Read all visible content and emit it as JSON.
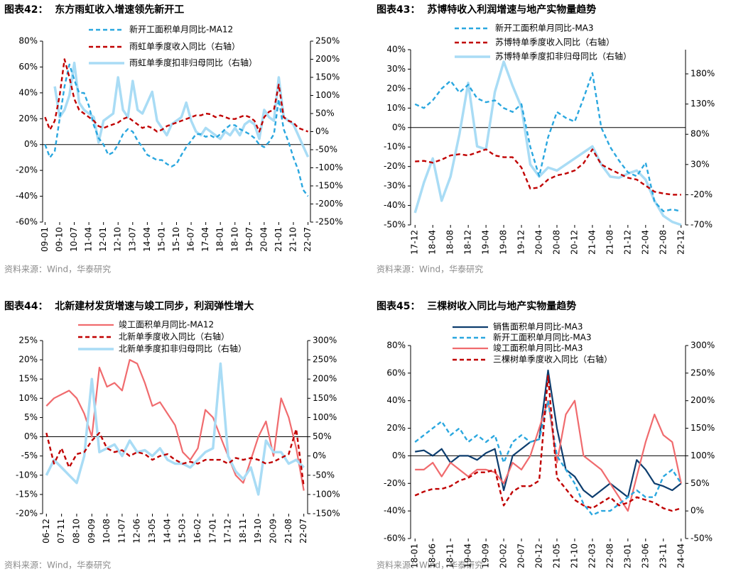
{
  "chart_data": [
    {
      "type": "line",
      "title": "图表42：  东方雨虹收入增速领先新开工",
      "source": "资料来源：Wind，华泰研究",
      "categories": [
        "09-01",
        null,
        null,
        "09-10",
        null,
        null,
        "10-07",
        null,
        null,
        "11-04",
        null,
        null,
        "12-01",
        null,
        null,
        "12-10",
        null,
        null,
        "13-07",
        null,
        null,
        "14-04",
        null,
        null,
        "15-01",
        null,
        null,
        "15-10",
        null,
        null,
        "16-07",
        null,
        null,
        "17-04",
        null,
        null,
        "18-01",
        null,
        null,
        "18-10",
        null,
        null,
        "19-07",
        null,
        null,
        "20-04",
        null,
        null,
        "21-01",
        null,
        null,
        "21-10",
        null,
        null,
        "22-07"
      ],
      "ylim": [
        -60,
        80
      ],
      "yticks": [
        {
          "value": -60,
          "label": "-60%"
        },
        {
          "value": -40,
          "label": "-40%"
        },
        {
          "value": -20,
          "label": "-20%"
        },
        {
          "value": 0,
          "label": "0%"
        },
        {
          "value": 20,
          "label": "20%"
        },
        {
          "value": 40,
          "label": "40%"
        },
        {
          "value": 60,
          "label": "60%"
        },
        {
          "value": 80,
          "label": "80%"
        }
      ],
      "y2lim": [
        -250,
        250
      ],
      "y2ticks": [
        {
          "value": -250,
          "label": "-250%"
        },
        {
          "value": -200,
          "label": "-200%"
        },
        {
          "value": -150,
          "label": "-150%"
        },
        {
          "value": -100,
          "label": "-100%"
        },
        {
          "value": -50,
          "label": "-50%"
        },
        {
          "value": 0,
          "label": "0%"
        },
        {
          "value": 50,
          "label": "50%"
        },
        {
          "value": 100,
          "label": "100%"
        },
        {
          "value": 150,
          "label": "150%"
        },
        {
          "value": 200,
          "label": "200%"
        },
        {
          "value": 250,
          "label": "250%"
        }
      ],
      "series": [
        {
          "name": "新开工面积单月同比-MA12",
          "color": "#2aa7df",
          "dash": true,
          "values": [
            0,
            -10,
            -5,
            20,
            45,
            62,
            50,
            40,
            40,
            30,
            15,
            5,
            0,
            -8,
            -6,
            0,
            8,
            12,
            10,
            3,
            -2,
            -8,
            -10,
            -12,
            -12,
            -15,
            -17,
            -15,
            -8,
            -2,
            3,
            8,
            8,
            6,
            7,
            5,
            8,
            12,
            15,
            15,
            12,
            10,
            8,
            5,
            0,
            -2,
            2,
            8,
            35,
            12,
            2,
            -10,
            -20,
            -35,
            -40
          ]
        },
        {
          "name": "雨虹单季度收入同比（右轴）",
          "color": "#c00000",
          "dash": true,
          "axis": "y2",
          "values": [
            40,
            5,
            30,
            100,
            200,
            150,
            90,
            60,
            50,
            40,
            30,
            15,
            10,
            15,
            20,
            25,
            35,
            40,
            30,
            20,
            10,
            15,
            10,
            0,
            5,
            15,
            20,
            25,
            30,
            35,
            40,
            45,
            45,
            50,
            48,
            40,
            45,
            40,
            35,
            35,
            40,
            45,
            40,
            30,
            0,
            40,
            55,
            60,
            130,
            40,
            30,
            25,
            10,
            5,
            0
          ]
        },
        {
          "name": "雨虹单季度扣非归母同比（右轴）",
          "color": "#a9dcf5",
          "axis": "y2",
          "values": [
            null,
            null,
            125,
            40,
            60,
            100,
            190,
            80,
            60,
            50,
            40,
            -30,
            30,
            40,
            50,
            150,
            60,
            40,
            140,
            60,
            50,
            80,
            110,
            30,
            10,
            -10,
            20,
            30,
            40,
            80,
            30,
            0,
            -10,
            10,
            0,
            -10,
            -20,
            0,
            -10,
            10,
            -10,
            20,
            30,
            20,
            -20,
            60,
            40,
            30,
            150,
            40,
            30,
            20,
            -10,
            -40,
            -70
          ]
        }
      ]
    },
    {
      "type": "line",
      "title": "图表43：  苏博特收入利润增速与地产实物量趋势",
      "source": "资料来源：Wind，华泰研究",
      "categories": [
        "17-12",
        null,
        "18-04",
        null,
        "18-08",
        null,
        "18-12",
        null,
        "19-04",
        null,
        "19-08",
        null,
        "19-12",
        null,
        "20-04",
        null,
        "20-08",
        null,
        "20-12",
        null,
        "21-04",
        null,
        "21-08",
        null,
        "21-12",
        null,
        "22-04",
        null,
        "22-08",
        null,
        "22-12"
      ],
      "ylim": [
        -50,
        40
      ],
      "yticks": [
        {
          "value": -50,
          "label": "-50%"
        },
        {
          "value": -40,
          "label": "-40%"
        },
        {
          "value": -30,
          "label": "-30%"
        },
        {
          "value": -20,
          "label": "-20%"
        },
        {
          "value": -10,
          "label": "-10%"
        },
        {
          "value": 0,
          "label": "0%"
        },
        {
          "value": 10,
          "label": "10%"
        },
        {
          "value": 20,
          "label": "20%"
        },
        {
          "value": 30,
          "label": "30%"
        },
        {
          "value": 40,
          "label": "40%"
        }
      ],
      "y2lim": [
        -70,
        220
      ],
      "y2ticks": [
        {
          "value": -70,
          "label": "-70%"
        },
        {
          "value": -20,
          "label": "-20%"
        },
        {
          "value": 30,
          "label": "30%"
        },
        {
          "value": 80,
          "label": "80%"
        },
        {
          "value": 130,
          "label": "130%"
        },
        {
          "value": 180,
          "label": "180%"
        }
      ],
      "series": [
        {
          "name": "新开工面积单月同比-MA3",
          "color": "#2aa7df",
          "dash": true,
          "values": [
            12,
            10,
            14,
            20,
            24,
            18,
            22,
            15,
            13,
            14,
            10,
            8,
            12,
            -10,
            -25,
            -5,
            8,
            5,
            3,
            15,
            28,
            0,
            -10,
            -17,
            -23,
            -25,
            -18,
            -38,
            -43,
            -42,
            -43
          ]
        },
        {
          "name": "苏博特单季度收入同比（右轴）",
          "color": "#c00000",
          "dash": true,
          "axis": "y2",
          "values": [
            35,
            36,
            33,
            38,
            45,
            47,
            45,
            50,
            55,
            45,
            42,
            42,
            25,
            -10,
            -8,
            5,
            12,
            15,
            20,
            32,
            55,
            30,
            22,
            15,
            8,
            5,
            -5,
            -15,
            -18,
            -20,
            -20
          ]
        },
        {
          "name": "苏博特单季度扣非归母同比（右轴）",
          "color": "#a9dcf5",
          "axis": "y2",
          "values": [
            -50,
            0,
            40,
            -30,
            10,
            80,
            165,
            60,
            55,
            150,
            200,
            160,
            125,
            30,
            10,
            25,
            20,
            30,
            40,
            50,
            60,
            30,
            10,
            8,
            15,
            20,
            5,
            -30,
            -55,
            -65,
            -70
          ]
        }
      ]
    },
    {
      "type": "line",
      "title": "图表44：  北新建材发货增速与竣工同步，利润弹性增大",
      "source": "资料来源：Wind，华泰研究",
      "categories": [
        "06-12",
        null,
        "07-11",
        null,
        "08-10",
        null,
        "09-09",
        null,
        "10-08",
        null,
        "11-07",
        null,
        "12-06",
        null,
        "13-05",
        null,
        "14-04",
        null,
        "15-03",
        null,
        "16-02",
        null,
        "17-01",
        null,
        "17-12",
        null,
        "18-11",
        null,
        "19-10",
        null,
        "20-09",
        null,
        "21-08",
        null,
        "22-07"
      ],
      "ylim": [
        -20,
        25
      ],
      "yticks": [
        {
          "value": -20,
          "label": "-20%"
        },
        {
          "value": -15,
          "label": "-15%"
        },
        {
          "value": -10,
          "label": "-10%"
        },
        {
          "value": -5,
          "label": "-5%"
        },
        {
          "value": 0,
          "label": "0%"
        },
        {
          "value": 5,
          "label": "5%"
        },
        {
          "value": 10,
          "label": "10%"
        },
        {
          "value": 15,
          "label": "15%"
        },
        {
          "value": 20,
          "label": "20%"
        },
        {
          "value": 25,
          "label": "25%"
        }
      ],
      "y2lim": [
        -150,
        300
      ],
      "y2ticks": [
        {
          "value": -150,
          "label": "-150%"
        },
        {
          "value": -100,
          "label": "-100%"
        },
        {
          "value": -50,
          "label": "-50%"
        },
        {
          "value": 0,
          "label": "0%"
        },
        {
          "value": 50,
          "label": "50%"
        },
        {
          "value": 100,
          "label": "100%"
        },
        {
          "value": 150,
          "label": "150%"
        },
        {
          "value": 200,
          "label": "200%"
        },
        {
          "value": 250,
          "label": "250%"
        },
        {
          "value": 300,
          "label": "300%"
        }
      ],
      "series": [
        {
          "name": "竣工面积单月同比-MA12",
          "color": "#f06b6e",
          "values": [
            8,
            10,
            11,
            12,
            10,
            6,
            0,
            18,
            13,
            14,
            12,
            20,
            19,
            14,
            8,
            9,
            6,
            3,
            -4,
            -6,
            -3,
            7,
            5,
            0,
            -5,
            -10,
            -12,
            -6,
            0,
            4,
            -5,
            10,
            5,
            -3,
            -14
          ]
        },
        {
          "name": "北新单季度收入同比（右轴）",
          "color": "#c00000",
          "dash": true,
          "axis": "y2",
          "values": [
            60,
            -20,
            20,
            -30,
            5,
            10,
            40,
            60,
            20,
            10,
            15,
            0,
            10,
            5,
            -10,
            0,
            5,
            -10,
            -20,
            -15,
            -20,
            -10,
            -10,
            -10,
            -20,
            -5,
            -10,
            -5,
            -10,
            -20,
            -15,
            -5,
            5,
            70,
            -80
          ]
        },
        {
          "name": "北新单季度扣非归母同比（右轴）",
          "color": "#a9dcf5",
          "axis": "y2",
          "values": [
            -50,
            -10,
            -30,
            -50,
            -70,
            0,
            200,
            10,
            20,
            30,
            0,
            40,
            10,
            15,
            0,
            20,
            -10,
            -20,
            -20,
            -30,
            -10,
            10,
            20,
            240,
            0,
            -40,
            -60,
            -30,
            -100,
            40,
            10,
            10,
            -20,
            -10,
            -30
          ]
        }
      ]
    },
    {
      "type": "line",
      "title": "图表45：  三棵树收入同比与地产实物量趋势",
      "source": "资料来源：Wind，华泰研究",
      "categories": [
        "18-01",
        null,
        "18-06",
        null,
        "18-11",
        null,
        "19-04",
        null,
        "19-09",
        null,
        "20-02",
        null,
        "20-07",
        null,
        "20-12",
        null,
        "21-05",
        null,
        "21-10",
        null,
        "22-03",
        null,
        "22-08",
        null,
        "23-01",
        null,
        "23-06",
        null,
        "23-11",
        null,
        "24-04"
      ],
      "ylim": [
        -60,
        80
      ],
      "yticks": [
        {
          "value": -60,
          "label": "-60%"
        },
        {
          "value": -40,
          "label": "-40%"
        },
        {
          "value": -20,
          "label": "-20%"
        },
        {
          "value": 0,
          "label": "0%"
        },
        {
          "value": 20,
          "label": "20%"
        },
        {
          "value": 40,
          "label": "40%"
        },
        {
          "value": 60,
          "label": "60%"
        },
        {
          "value": 80,
          "label": "80%"
        }
      ],
      "y2lim": [
        -50,
        300
      ],
      "y2ticks": [
        {
          "value": -50,
          "label": "-50%"
        },
        {
          "value": 0,
          "label": "0%"
        },
        {
          "value": 50,
          "label": "50%"
        },
        {
          "value": 100,
          "label": "100%"
        },
        {
          "value": 150,
          "label": "150%"
        },
        {
          "value": 200,
          "label": "200%"
        },
        {
          "value": 250,
          "label": "250%"
        },
        {
          "value": 300,
          "label": "300%"
        }
      ],
      "series": [
        {
          "name": "销售面积单月同比-MA3",
          "color": "#0d3d6e",
          "values": [
            3,
            4,
            0,
            5,
            -5,
            0,
            0,
            -3,
            2,
            5,
            -25,
            0,
            5,
            10,
            12,
            62,
            20,
            -10,
            -15,
            -25,
            -30,
            -25,
            -20,
            -25,
            -30,
            -3,
            -10,
            -20,
            -22,
            -25,
            -20
          ]
        },
        {
          "name": "新开工面积单月同比-MA3",
          "color": "#2aa7df",
          "dash": true,
          "values": [
            10,
            15,
            20,
            25,
            15,
            20,
            10,
            15,
            10,
            15,
            -5,
            10,
            15,
            10,
            12,
            40,
            0,
            -10,
            -20,
            -35,
            -43,
            -40,
            -40,
            -35,
            -30,
            -25,
            -30,
            -30,
            -15,
            -10,
            -20
          ]
        },
        {
          "name": "竣工面积单月同比-MA3",
          "color": "#f06b6e",
          "values": [
            -10,
            -10,
            -5,
            -15,
            -5,
            -10,
            -15,
            -10,
            -10,
            -12,
            -20,
            -5,
            -10,
            0,
            20,
            40,
            -5,
            30,
            40,
            0,
            -5,
            -10,
            -20,
            -30,
            -40,
            -15,
            10,
            30,
            15,
            10,
            -20
          ]
        },
        {
          "name": "三棵树单季度收入同比（右轴）",
          "color": "#c00000",
          "dash": true,
          "axis": "y2",
          "values": [
            28,
            35,
            40,
            40,
            45,
            55,
            60,
            70,
            70,
            75,
            10,
            35,
            45,
            45,
            55,
            245,
            60,
            40,
            20,
            10,
            5,
            15,
            25,
            10,
            15,
            25,
            20,
            15,
            5,
            0,
            5
          ]
        }
      ]
    }
  ]
}
